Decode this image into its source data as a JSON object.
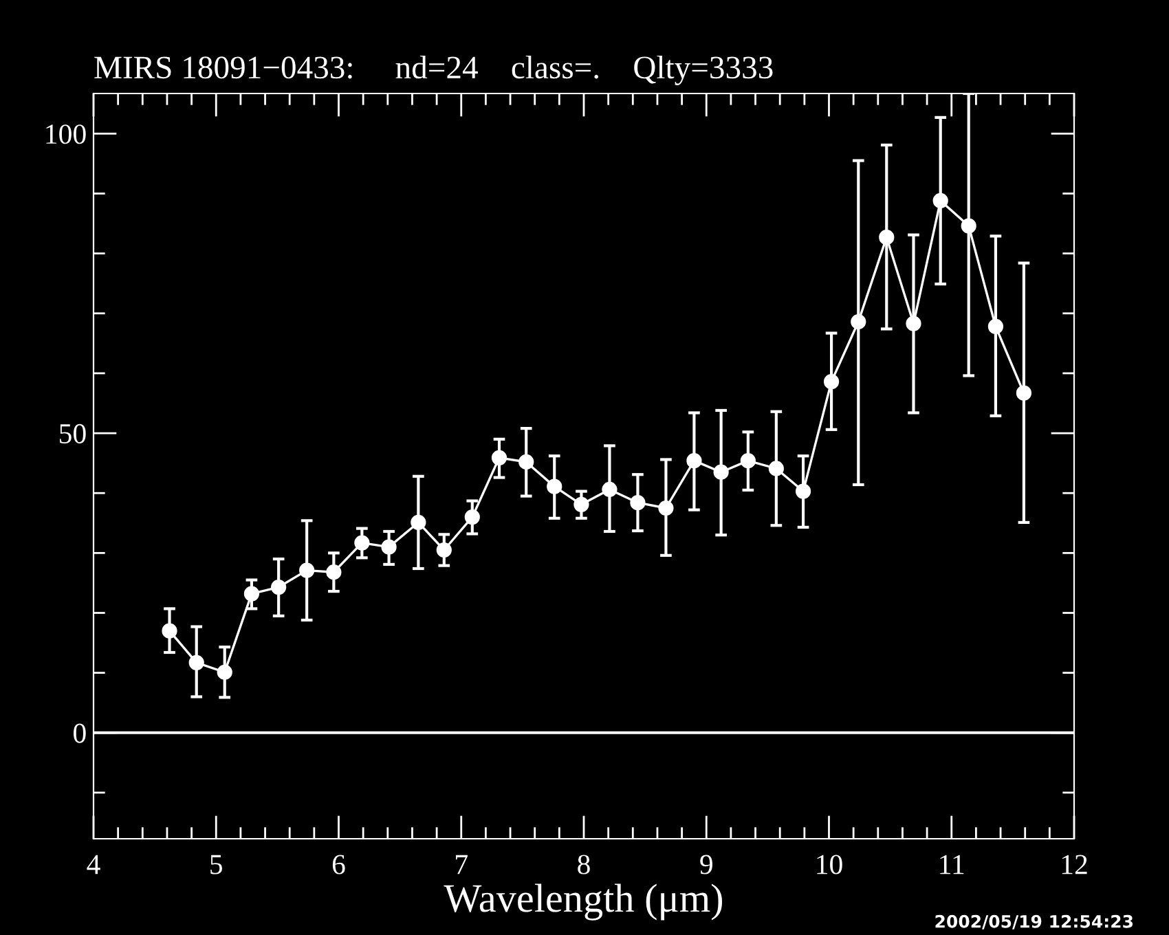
{
  "chart_data": {
    "type": "line",
    "title": "MIRS 18091−0433:     nd=24    class=.    Qlty=3333",
    "xlabel": "Wavelength (μm)",
    "x": [
      4.62,
      4.84,
      5.07,
      5.29,
      5.51,
      5.74,
      5.96,
      6.19,
      6.41,
      6.65,
      6.86,
      7.09,
      7.31,
      7.53,
      7.76,
      7.98,
      8.21,
      8.44,
      8.67,
      8.9,
      9.12,
      9.34,
      9.57,
      9.79,
      10.02,
      10.24,
      10.47,
      10.69,
      10.91,
      11.14,
      11.36,
      11.59
    ],
    "series": [
      {
        "color": "#ffffff",
        "values": [
          17.0,
          11.7,
          10.1,
          23.2,
          24.3,
          27.1,
          26.8,
          31.7,
          31.0,
          35.1,
          30.5,
          36.0,
          45.9,
          45.2,
          41.1,
          38.1,
          40.6,
          38.4,
          37.5,
          45.4,
          43.5,
          45.4,
          44.1,
          40.3,
          58.6,
          68.6,
          82.7,
          68.3,
          88.8,
          84.6,
          67.8,
          56.7
        ],
        "errors": [
          [
            13.4,
            20.7
          ],
          [
            6.0,
            17.7
          ],
          [
            5.9,
            14.3
          ],
          [
            20.7,
            25.5
          ],
          [
            19.5,
            29.0
          ],
          [
            18.8,
            35.4
          ],
          [
            23.6,
            30.0
          ],
          [
            29.2,
            34.1
          ],
          [
            28.1,
            33.6
          ],
          [
            27.4,
            42.8
          ],
          [
            27.9,
            33.1
          ],
          [
            33.2,
            38.7
          ],
          [
            42.6,
            49.0
          ],
          [
            39.5,
            50.8
          ],
          [
            35.8,
            46.2
          ],
          [
            35.8,
            40.3
          ],
          [
            33.6,
            47.9
          ],
          [
            33.7,
            43.1
          ],
          [
            29.6,
            45.6
          ],
          [
            37.2,
            53.4
          ],
          [
            33.0,
            53.8
          ],
          [
            40.5,
            50.2
          ],
          [
            34.6,
            53.6
          ],
          [
            34.3,
            46.2
          ],
          [
            50.6,
            66.7
          ],
          [
            41.4,
            95.5
          ],
          [
            67.4,
            98.1
          ],
          [
            53.4,
            83.1
          ],
          [
            74.9,
            102.7
          ],
          [
            59.6,
            106.7
          ],
          [
            52.9,
            82.9
          ],
          [
            35.1,
            78.4
          ]
        ]
      }
    ],
    "marker": "circle",
    "line_style": "solid",
    "xlim": [
      4,
      12
    ],
    "ylim": [
      -17.7,
      106.7
    ],
    "xticks": [
      4,
      {
        "value": 4.2,
        "label": null
      },
      {
        "value": 4.4,
        "label": null
      },
      {
        "value": 4.6,
        "label": null
      },
      {
        "value": 4.8,
        "label": null
      },
      5,
      {
        "value": 5.2,
        "label": null
      },
      {
        "value": 5.4,
        "label": null
      },
      {
        "value": 5.6,
        "label": null
      },
      {
        "value": 5.8,
        "label": null
      },
      6,
      {
        "value": 6.2,
        "label": null
      },
      {
        "value": 6.4,
        "label": null
      },
      {
        "value": 6.6,
        "label": null
      },
      {
        "value": 6.8,
        "label": null
      },
      7,
      {
        "value": 7.2,
        "label": null
      },
      {
        "value": 7.4,
        "label": null
      },
      {
        "value": 7.6,
        "label": null
      },
      {
        "value": 7.8,
        "label": null
      },
      8,
      {
        "value": 8.2,
        "label": null
      },
      {
        "value": 8.4,
        "label": null
      },
      {
        "value": 8.6,
        "label": null
      },
      {
        "value": 8.8,
        "label": null
      },
      9,
      {
        "value": 9.2,
        "label": null
      },
      {
        "value": 9.4,
        "label": null
      },
      {
        "value": 9.6,
        "label": null
      },
      {
        "value": 9.8,
        "label": null
      },
      10,
      {
        "value": 10.2,
        "label": null
      },
      {
        "value": 10.4,
        "label": null
      },
      {
        "value": 10.6,
        "label": null
      },
      {
        "value": 10.8,
        "label": null
      },
      11,
      {
        "value": 11.2,
        "label": null
      },
      {
        "value": 11.4,
        "label": null
      },
      {
        "value": 11.6,
        "label": null
      },
      {
        "value": 11.8,
        "label": null
      },
      12
    ],
    "yticks": [
      {
        "value": -10,
        "label": null
      },
      0,
      {
        "value": 10,
        "label": null
      },
      {
        "value": 20,
        "label": null
      },
      {
        "value": 30,
        "label": null
      },
      {
        "value": 40,
        "label": null
      },
      50,
      {
        "value": 60,
        "label": null
      },
      {
        "value": 70,
        "label": null
      },
      {
        "value": 80,
        "label": null
      },
      {
        "value": 90,
        "label": null
      },
      100
    ],
    "ref_lines": [
      {
        "axis": "y",
        "value": 0,
        "color": "#ffffff",
        "line_style": "solid"
      }
    ],
    "annotations": [
      "2002/05/19 12:54:23"
    ],
    "grid": false,
    "legend": false
  }
}
